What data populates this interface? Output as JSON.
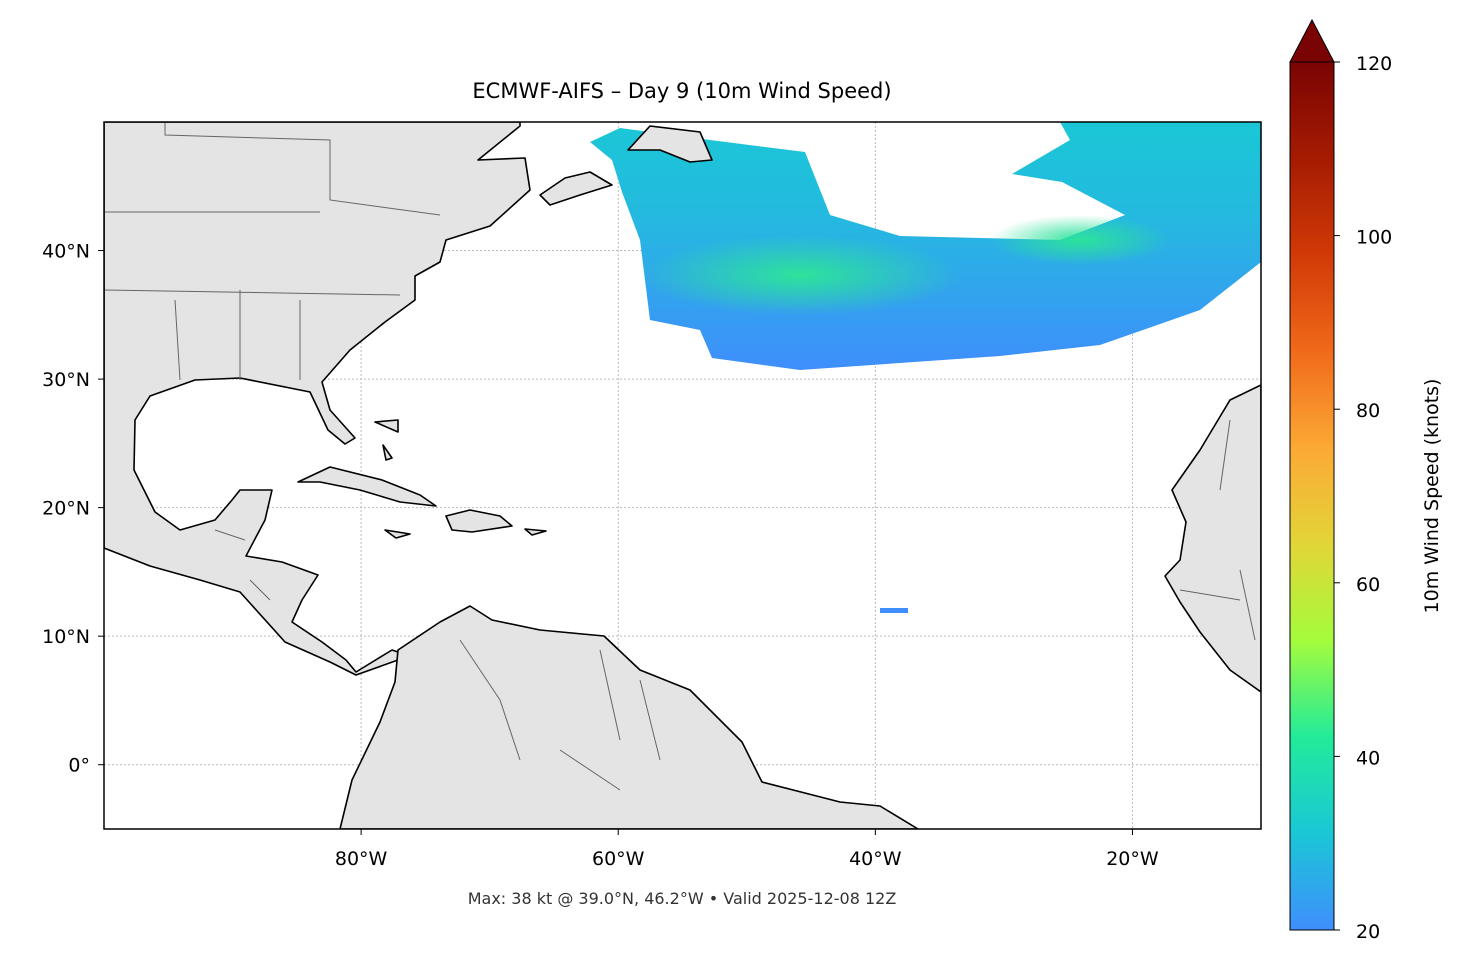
{
  "chart_data": {
    "type": "map",
    "title": "ECMWF-AIFS – Day 9 (10m Wind Speed)",
    "footnote": "Max: 38 kt @ 39.0°N, 46.2°W • Valid 2025-12-08 12Z",
    "xlim": [
      -100,
      -10
    ],
    "ylim": [
      -5,
      50
    ],
    "xticks": [
      {
        "value": -80,
        "label": "80°W"
      },
      {
        "value": -60,
        "label": "60°W"
      },
      {
        "value": -40,
        "label": "40°W"
      },
      {
        "value": -20,
        "label": "20°W"
      }
    ],
    "yticks": [
      {
        "value": 0,
        "label": "0°"
      },
      {
        "value": 10,
        "label": "10°N"
      },
      {
        "value": 20,
        "label": "20°N"
      },
      {
        "value": 30,
        "label": "30°N"
      },
      {
        "value": 40,
        "label": "40°N"
      }
    ],
    "grid": true,
    "colorbar": {
      "label": "10m Wind Speed (knots)",
      "lim": [
        20,
        120
      ],
      "ticks": [
        20,
        40,
        60,
        80,
        100,
        120
      ],
      "colors": [
        "#3f8efc",
        "#1ac7d6",
        "#22eb9a",
        "#a4fc3c",
        "#e2d538",
        "#fca935",
        "#f06a1a",
        "#d13a07",
        "#a51b02",
        "#7a0403"
      ]
    }
  }
}
